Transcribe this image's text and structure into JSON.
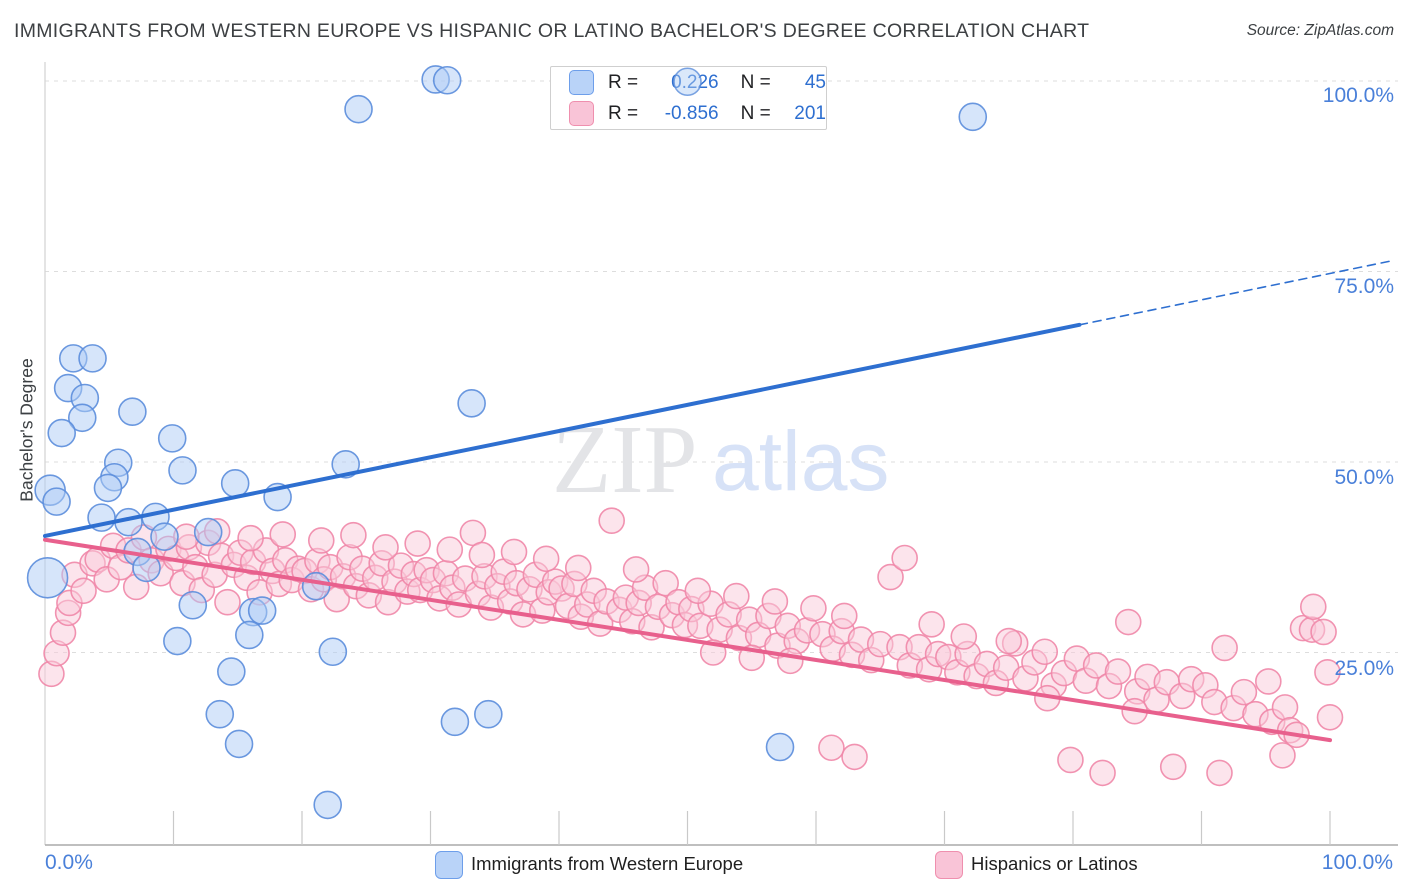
{
  "header": {
    "title": "IMMIGRANTS FROM WESTERN EUROPE VS HISPANIC OR LATINO BACHELOR'S DEGREE CORRELATION CHART",
    "source": "Source: ZipAtlas.com"
  },
  "y_axis_title": "Bachelor's Degree",
  "watermark": {
    "zip": "ZIP",
    "atlas": "atlas"
  },
  "legend_box": {
    "rows": [
      {
        "r_label": "R =",
        "r_value": "0.226",
        "n_label": "N =",
        "n_value": "45"
      },
      {
        "r_label": "R =",
        "r_value": "-0.856",
        "n_label": "N =",
        "n_value": "201"
      }
    ]
  },
  "axes": {
    "y_ticks": [
      {
        "label": "100.0%",
        "value": 100
      },
      {
        "label": "75.0%",
        "value": 75
      },
      {
        "label": "50.0%",
        "value": 50
      },
      {
        "label": "25.0%",
        "value": 25
      }
    ],
    "x_left_label": "0.0%",
    "x_right_label": "100.0%",
    "x_tick_percents": [
      10,
      20,
      30,
      40,
      50,
      60,
      70,
      80,
      90,
      100
    ]
  },
  "bottom_legend": {
    "items": [
      {
        "label": "Immigrants from Western Europe",
        "color": "#b9d3f8",
        "border": "#6d9eea"
      },
      {
        "label": "Hispanics or Latinos",
        "color": "#f9c4d7",
        "border": "#ef8fae"
      }
    ]
  },
  "colors": {
    "blue_fill": "#aecbf5",
    "blue_edge": "#5b8ddb",
    "pink_fill": "#f9c9da",
    "pink_edge": "#ef87a8",
    "blue_line": "#2e6fd0",
    "pink_line": "#e8608d",
    "grid": "#dddddd",
    "axis": "#aaaaaa",
    "tick": "#c9c9c9",
    "spine": "#d6d6d6",
    "label_blue": "#4a80d9"
  },
  "chart_data": {
    "type": "scatter",
    "title": "Immigrants from Western Europe vs Hispanic or Latino Bachelor's Degree",
    "xlabel_range": [
      "0.0%",
      "100.0%"
    ],
    "ylabel": "Bachelor's Degree",
    "xlim": [
      0,
      105
    ],
    "ylim": [
      0,
      102
    ],
    "grid": "horizontal-dashed",
    "legend_position": "bottom",
    "series": [
      {
        "name": "Immigrants from Western Europe",
        "R": 0.226,
        "N": 45,
        "points": [
          [
            30.4,
            100.2
          ],
          [
            31.3,
            100.1
          ],
          [
            24.4,
            96.3
          ],
          [
            50.0,
            99.9
          ],
          [
            72.2,
            95.3
          ],
          [
            2.2,
            63.6
          ],
          [
            3.7,
            63.6
          ],
          [
            1.8,
            59.7
          ],
          [
            3.1,
            58.4
          ],
          [
            6.8,
            56.6
          ],
          [
            2.9,
            55.8
          ],
          [
            1.3,
            53.8
          ],
          [
            9.9,
            53.1
          ],
          [
            33.2,
            57.7
          ],
          [
            5.7,
            49.9
          ],
          [
            10.7,
            48.9
          ],
          [
            5.4,
            48.0
          ],
          [
            4.9,
            46.6
          ],
          [
            0.4,
            46.3,
            15
          ],
          [
            14.8,
            47.2
          ],
          [
            18.1,
            45.4
          ],
          [
            4.4,
            42.7
          ],
          [
            6.5,
            42.1
          ],
          [
            8.6,
            42.8
          ],
          [
            9.3,
            40.2
          ],
          [
            12.7,
            40.8
          ],
          [
            7.2,
            38.2
          ],
          [
            7.9,
            36.1
          ],
          [
            0.2,
            34.8,
            20
          ],
          [
            21.1,
            33.7
          ],
          [
            11.5,
            31.2
          ],
          [
            16.2,
            30.3
          ],
          [
            16.9,
            30.5
          ],
          [
            10.3,
            26.5
          ],
          [
            15.9,
            27.3
          ],
          [
            22.4,
            25.1
          ],
          [
            14.5,
            22.5
          ],
          [
            13.6,
            16.9
          ],
          [
            15.1,
            13.0
          ],
          [
            22.0,
            5.0
          ],
          [
            31.9,
            15.9
          ],
          [
            34.5,
            16.9
          ],
          [
            57.2,
            12.6
          ],
          [
            23.4,
            49.7
          ],
          [
            0.9,
            44.8
          ]
        ]
      },
      {
        "name": "Hispanics or Latinos",
        "R": -0.856,
        "N": 201,
        "points": [
          [
            0.5,
            22.2
          ],
          [
            0.9,
            24.9
          ],
          [
            1.4,
            27.6
          ],
          [
            1.8,
            30.2
          ],
          [
            1.9,
            31.5
          ],
          [
            2.3,
            35.2
          ],
          [
            3.0,
            33.1
          ],
          [
            3.7,
            36.7
          ],
          [
            4.1,
            37.2
          ],
          [
            4.8,
            34.6
          ],
          [
            5.3,
            39.0
          ],
          [
            5.9,
            36.2
          ],
          [
            6.5,
            38.4
          ],
          [
            7.1,
            33.6
          ],
          [
            7.7,
            40.1
          ],
          [
            8.3,
            37.1
          ],
          [
            9.0,
            35.4
          ],
          [
            9.6,
            38.6
          ],
          [
            10.2,
            37.4
          ],
          [
            10.7,
            34.1
          ],
          [
            11.2,
            38.8
          ],
          [
            11.7,
            36.2
          ],
          [
            12.2,
            33.2
          ],
          [
            12.7,
            39.4
          ],
          [
            13.2,
            35.2
          ],
          [
            13.7,
            37.7
          ],
          [
            14.2,
            31.6
          ],
          [
            14.7,
            36.5
          ],
          [
            15.2,
            38.1
          ],
          [
            15.7,
            34.8
          ],
          [
            16.2,
            36.9
          ],
          [
            16.7,
            32.9
          ],
          [
            17.2,
            38.4
          ],
          [
            17.7,
            35.7
          ],
          [
            18.2,
            34.0
          ],
          [
            18.7,
            37.1
          ],
          [
            19.2,
            34.5
          ],
          [
            19.7,
            36.0
          ],
          [
            11.0,
            40.2
          ],
          [
            13.4,
            40.9
          ],
          [
            16.0,
            40.0
          ],
          [
            18.5,
            40.5
          ],
          [
            20.2,
            35.7
          ],
          [
            20.7,
            33.3
          ],
          [
            21.2,
            37.0
          ],
          [
            21.7,
            34.6
          ],
          [
            22.2,
            36.2
          ],
          [
            22.7,
            32.0
          ],
          [
            23.2,
            35.0
          ],
          [
            23.7,
            37.5
          ],
          [
            24.2,
            33.7
          ],
          [
            24.7,
            36.0
          ],
          [
            25.2,
            32.5
          ],
          [
            25.7,
            34.8
          ],
          [
            26.2,
            36.7
          ],
          [
            26.7,
            31.6
          ],
          [
            27.2,
            34.3
          ],
          [
            27.7,
            36.4
          ],
          [
            28.2,
            33.0
          ],
          [
            28.7,
            35.3
          ],
          [
            29.2,
            33.2
          ],
          [
            29.7,
            35.8
          ],
          [
            21.5,
            39.7
          ],
          [
            24.0,
            40.4
          ],
          [
            26.5,
            38.8
          ],
          [
            29.0,
            39.3
          ],
          [
            30.2,
            34.5
          ],
          [
            30.7,
            32.1
          ],
          [
            31.2,
            35.4
          ],
          [
            31.7,
            33.5
          ],
          [
            32.2,
            31.3
          ],
          [
            32.7,
            34.7
          ],
          [
            33.3,
            40.7
          ],
          [
            33.7,
            32.7
          ],
          [
            34.2,
            35.0
          ],
          [
            34.7,
            30.9
          ],
          [
            35.2,
            33.7
          ],
          [
            35.7,
            35.6
          ],
          [
            36.2,
            31.7
          ],
          [
            36.7,
            34.1
          ],
          [
            37.2,
            30.0
          ],
          [
            37.7,
            33.3
          ],
          [
            38.2,
            35.2
          ],
          [
            38.7,
            30.5
          ],
          [
            39.2,
            32.9
          ],
          [
            39.7,
            34.3
          ],
          [
            31.5,
            38.5
          ],
          [
            34.0,
            37.8
          ],
          [
            36.5,
            38.2
          ],
          [
            39.0,
            37.3
          ],
          [
            40.2,
            33.4
          ],
          [
            40.7,
            31.1
          ],
          [
            41.2,
            34.0
          ],
          [
            41.7,
            29.7
          ],
          [
            42.2,
            31.3
          ],
          [
            42.7,
            33.1
          ],
          [
            43.2,
            28.8
          ],
          [
            43.7,
            31.7
          ],
          [
            44.1,
            42.3
          ],
          [
            44.7,
            30.6
          ],
          [
            45.2,
            32.2
          ],
          [
            45.7,
            29.1
          ],
          [
            46.2,
            31.5
          ],
          [
            46.7,
            33.5
          ],
          [
            47.2,
            28.3
          ],
          [
            47.7,
            31.0
          ],
          [
            48.3,
            34.1
          ],
          [
            48.8,
            29.9
          ],
          [
            49.3,
            31.6
          ],
          [
            49.8,
            28.6
          ],
          [
            41.5,
            36.1
          ],
          [
            46.0,
            35.9
          ],
          [
            50.3,
            30.7
          ],
          [
            51.0,
            28.5
          ],
          [
            51.8,
            31.4
          ],
          [
            52.5,
            28.0
          ],
          [
            53.2,
            30.0
          ],
          [
            54.0,
            26.9
          ],
          [
            54.8,
            29.3
          ],
          [
            55.5,
            27.3
          ],
          [
            56.3,
            29.8
          ],
          [
            57.0,
            25.9
          ],
          [
            57.8,
            28.5
          ],
          [
            58.5,
            26.5
          ],
          [
            59.3,
            27.9
          ],
          [
            50.8,
            33.1
          ],
          [
            53.8,
            32.4
          ],
          [
            56.8,
            31.7
          ],
          [
            59.8,
            30.8
          ],
          [
            52.0,
            25.0
          ],
          [
            55.0,
            24.3
          ],
          [
            58.0,
            23.9
          ],
          [
            60.5,
            27.4
          ],
          [
            61.3,
            25.5
          ],
          [
            62.0,
            27.8
          ],
          [
            62.8,
            24.7
          ],
          [
            63.5,
            26.7
          ],
          [
            64.3,
            24.0
          ],
          [
            65.0,
            26.1
          ],
          [
            65.8,
            34.9
          ],
          [
            66.9,
            37.4
          ],
          [
            66.5,
            25.7
          ],
          [
            67.3,
            23.3
          ],
          [
            68.0,
            25.7
          ],
          [
            68.8,
            22.8
          ],
          [
            69.5,
            24.8
          ],
          [
            61.2,
            12.5
          ],
          [
            63.0,
            11.3
          ],
          [
            62.2,
            29.8
          ],
          [
            69.0,
            28.7
          ],
          [
            70.3,
            24.4
          ],
          [
            71.0,
            22.4
          ],
          [
            71.8,
            24.8
          ],
          [
            72.5,
            21.9
          ],
          [
            73.3,
            23.5
          ],
          [
            74.0,
            21.0
          ],
          [
            74.8,
            23.0
          ],
          [
            75.5,
            26.2
          ],
          [
            76.3,
            21.6
          ],
          [
            77.0,
            23.7
          ],
          [
            77.8,
            25.1
          ],
          [
            78.5,
            20.7
          ],
          [
            79.3,
            22.3
          ],
          [
            79.8,
            10.9
          ],
          [
            71.5,
            27.1
          ],
          [
            75.0,
            26.5
          ],
          [
            78.0,
            19.0
          ],
          [
            80.3,
            24.2
          ],
          [
            81.0,
            21.3
          ],
          [
            81.8,
            23.3
          ],
          [
            82.3,
            9.2
          ],
          [
            82.8,
            20.6
          ],
          [
            83.5,
            22.5
          ],
          [
            84.3,
            29.0
          ],
          [
            85.0,
            19.9
          ],
          [
            85.8,
            21.8
          ],
          [
            86.5,
            18.8
          ],
          [
            87.3,
            21.1
          ],
          [
            87.8,
            10.0
          ],
          [
            88.5,
            19.3
          ],
          [
            89.2,
            21.5
          ],
          [
            84.8,
            17.3
          ],
          [
            90.3,
            20.7
          ],
          [
            91.0,
            18.5
          ],
          [
            91.4,
            9.2
          ],
          [
            91.8,
            25.6
          ],
          [
            92.5,
            17.7
          ],
          [
            93.3,
            19.8
          ],
          [
            94.2,
            16.9
          ],
          [
            95.2,
            21.2
          ],
          [
            95.5,
            15.9
          ],
          [
            96.3,
            11.5
          ],
          [
            96.5,
            17.8
          ],
          [
            96.9,
            14.8
          ],
          [
            97.4,
            14.2
          ],
          [
            97.9,
            28.2
          ],
          [
            98.6,
            28.0
          ],
          [
            98.7,
            31.0
          ],
          [
            99.5,
            27.7
          ],
          [
            99.8,
            22.4
          ],
          [
            100.0,
            16.5
          ]
        ]
      }
    ],
    "trendlines": [
      {
        "series": "Immigrants from Western Europe",
        "solid": [
          [
            0,
            40.3
          ],
          [
            80.5,
            68.0
          ]
        ],
        "dashed": [
          [
            80.5,
            68.0
          ],
          [
            104.8,
            76.4
          ]
        ]
      },
      {
        "series": "Hispanics or Latinos",
        "solid": [
          [
            0,
            39.8
          ],
          [
            100,
            13.5
          ]
        ]
      }
    ]
  }
}
